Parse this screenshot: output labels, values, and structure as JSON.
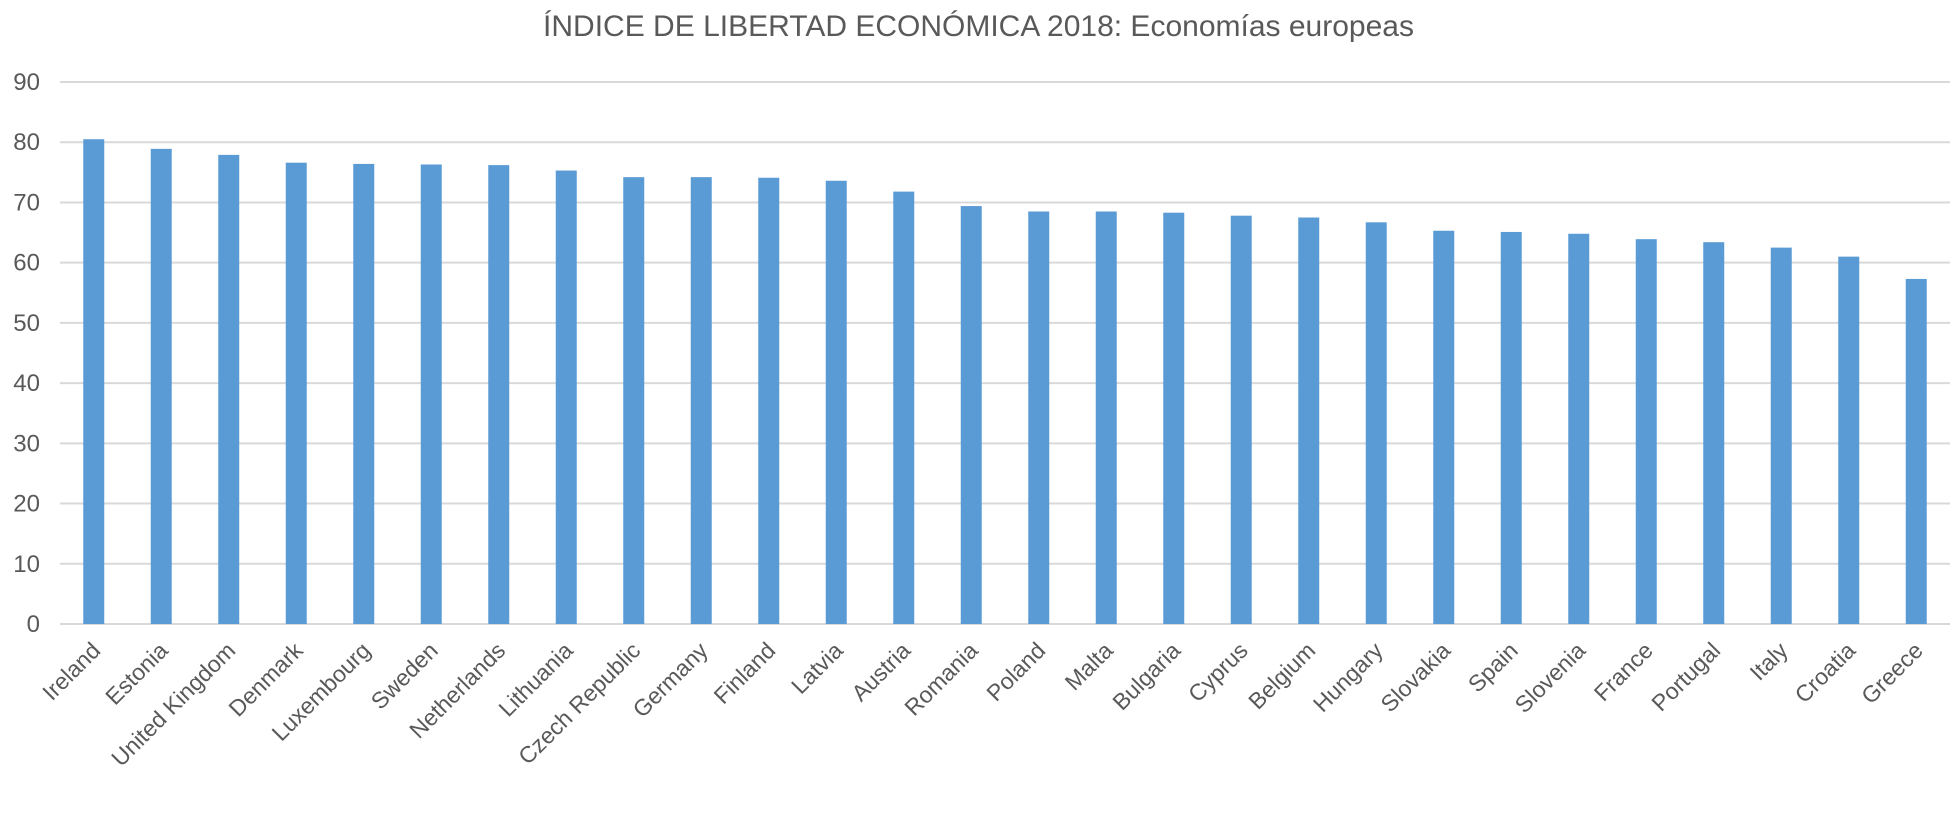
{
  "chart_data": {
    "type": "bar",
    "title": "ÍNDICE DE LIBERTAD ECONÓMICA 2018: Economías europeas",
    "xlabel": "",
    "ylabel": "",
    "ylim": [
      0,
      90
    ],
    "yticks": [
      "0",
      "10",
      "20",
      "30",
      "40",
      "50",
      "60",
      "70",
      "80",
      "90"
    ],
    "grid": true,
    "bar_color": "#5B9BD5",
    "categories": [
      "Ireland",
      "Estonia",
      "United Kingdom",
      "Denmark",
      "Luxembourg",
      "Sweden",
      "Netherlands",
      "Lithuania",
      "Czech Republic",
      "Germany",
      "Finland",
      "Latvia",
      "Austria",
      "Romania",
      "Poland",
      "Malta",
      "Bulgaria",
      "Cyprus",
      "Belgium",
      "Hungary",
      "Slovakia",
      "Spain",
      "Slovenia",
      "France",
      "Portugal",
      "Italy",
      "Croatia",
      "Greece"
    ],
    "values": [
      80.5,
      78.9,
      77.9,
      76.6,
      76.4,
      76.3,
      76.2,
      75.3,
      74.2,
      74.2,
      74.1,
      73.6,
      71.8,
      69.4,
      68.5,
      68.5,
      68.3,
      67.8,
      67.5,
      66.7,
      65.3,
      65.1,
      64.8,
      63.9,
      63.4,
      62.5,
      61.0,
      57.3
    ]
  }
}
